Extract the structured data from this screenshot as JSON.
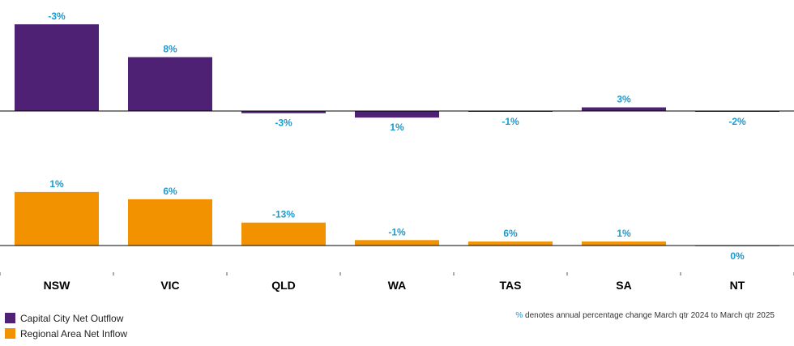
{
  "chart_data": {
    "type": "bar",
    "categories": [
      "NSW",
      "VIC",
      "QLD",
      "WA",
      "TAS",
      "SA",
      "NT"
    ],
    "series": [
      {
        "name": "Capital City Net Outflow",
        "color": "#4e2175",
        "values": [
          23800,
          14800,
          -600,
          -1800,
          -50,
          1000,
          -30
        ],
        "labels": [
          "-3%",
          "8%",
          "-3%",
          "1%",
          "-1%",
          "3%",
          "-2%"
        ]
      },
      {
        "name": "Regional Area Net Inflow",
        "color": "#f39200",
        "values": [
          14700,
          12700,
          6300,
          1500,
          1100,
          1100,
          -200
        ],
        "labels": [
          "1%",
          "6%",
          "-13%",
          "-1%",
          "6%",
          "1%",
          "0%"
        ]
      }
    ],
    "legend_position": "bottom-left",
    "grid": false
  },
  "note": {
    "symbol": "%",
    "text": " denotes annual percentage change March qtr 2024 to March qtr 2025"
  }
}
